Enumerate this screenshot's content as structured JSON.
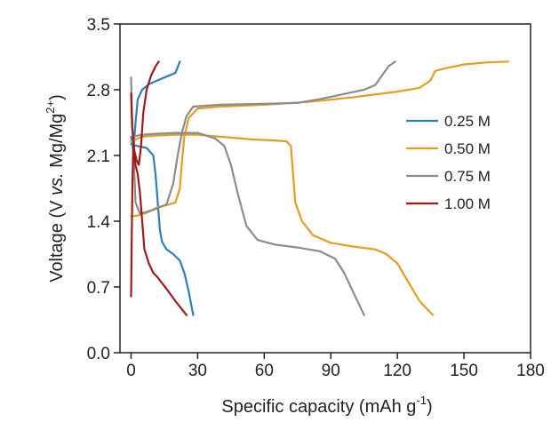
{
  "chart_data": {
    "type": "line",
    "title": "",
    "xlabel": "Specific capacity (mAh g",
    "xlabel_sup": "-1",
    "xlabel_end": ")",
    "ylabel": "Voltage (V ",
    "ylabel_italic": "vs.",
    "ylabel_mid": " Mg/Mg",
    "ylabel_sup": "2+",
    "ylabel_end": ")",
    "xlim": [
      -5,
      180
    ],
    "ylim": [
      0,
      3.5
    ],
    "xticks": [
      0,
      30,
      60,
      90,
      120,
      150,
      180
    ],
    "yticks": [
      0.0,
      0.7,
      1.4,
      2.1,
      2.8,
      3.5
    ],
    "xtick_labels": [
      "0",
      "30",
      "60",
      "90",
      "120",
      "150",
      "180"
    ],
    "ytick_labels": [
      "0.0",
      "0.7",
      "1.4",
      "2.1",
      "2.8",
      "3.5"
    ],
    "legend_position": "center-right",
    "grid": false,
    "series": [
      {
        "name": "0.25 M",
        "color": "#2e7fb8",
        "segments": [
          [
            [
              0,
              2.22
            ],
            [
              3,
              2.2
            ],
            [
              7,
              2.18
            ],
            [
              10,
              2.1
            ],
            [
              11,
              1.9
            ],
            [
              12,
              1.6
            ],
            [
              13,
              1.3
            ],
            [
              14,
              1.18
            ],
            [
              16,
              1.1
            ],
            [
              19,
              1.05
            ],
            [
              22,
              0.98
            ],
            [
              24,
              0.85
            ],
            [
              26,
              0.65
            ],
            [
              28,
              0.4
            ]
          ],
          [
            [
              0,
              2.3
            ],
            [
              1,
              2.15
            ],
            [
              2,
              2.45
            ],
            [
              3,
              2.7
            ],
            [
              5,
              2.8
            ],
            [
              8,
              2.86
            ],
            [
              12,
              2.9
            ],
            [
              16,
              2.94
            ],
            [
              20,
              2.98
            ],
            [
              22,
              3.1
            ]
          ]
        ]
      },
      {
        "name": "0.50 M",
        "color": "#e59c25",
        "segments": [
          [
            [
              0,
              2.25
            ],
            [
              5,
              2.3
            ],
            [
              10,
              2.31
            ],
            [
              20,
              2.32
            ],
            [
              30,
              2.32
            ],
            [
              45,
              2.29
            ],
            [
              55,
              2.27
            ],
            [
              65,
              2.26
            ],
            [
              70,
              2.25
            ],
            [
              72,
              2.2
            ],
            [
              73,
              1.9
            ],
            [
              74,
              1.6
            ],
            [
              77,
              1.4
            ],
            [
              82,
              1.25
            ],
            [
              90,
              1.17
            ],
            [
              100,
              1.13
            ],
            [
              110,
              1.1
            ],
            [
              115,
              1.05
            ],
            [
              120,
              0.95
            ],
            [
              125,
              0.75
            ],
            [
              130,
              0.55
            ],
            [
              136,
              0.4
            ]
          ],
          [
            [
              0,
              1.45
            ],
            [
              3,
              1.46
            ],
            [
              8,
              1.5
            ],
            [
              12,
              1.55
            ],
            [
              16,
              1.57
            ],
            [
              20,
              1.6
            ],
            [
              22,
              1.75
            ],
            [
              23,
              2.05
            ],
            [
              24,
              2.3
            ],
            [
              26,
              2.5
            ],
            [
              30,
              2.6
            ],
            [
              40,
              2.62
            ],
            [
              60,
              2.64
            ],
            [
              80,
              2.67
            ],
            [
              100,
              2.72
            ],
            [
              120,
              2.78
            ],
            [
              130,
              2.82
            ],
            [
              135,
              2.9
            ],
            [
              137,
              3.0
            ],
            [
              142,
              3.03
            ],
            [
              150,
              3.07
            ],
            [
              160,
              3.09
            ],
            [
              170,
              3.1
            ]
          ]
        ]
      },
      {
        "name": "0.75 M",
        "color": "#8c8c8c",
        "segments": [
          [
            [
              0,
              2.3
            ],
            [
              5,
              2.32
            ],
            [
              10,
              2.33
            ],
            [
              20,
              2.34
            ],
            [
              30,
              2.34
            ],
            [
              38,
              2.28
            ],
            [
              42,
              2.2
            ],
            [
              45,
              2.0
            ],
            [
              48,
              1.7
            ],
            [
              52,
              1.35
            ],
            [
              57,
              1.2
            ],
            [
              65,
              1.15
            ],
            [
              75,
              1.12
            ],
            [
              85,
              1.08
            ],
            [
              92,
              1.0
            ],
            [
              96,
              0.85
            ],
            [
              100,
              0.65
            ],
            [
              105,
              0.4
            ]
          ],
          [
            [
              0,
              2.93
            ],
            [
              0.5,
              2.5
            ],
            [
              1,
              2.2
            ],
            [
              2,
              1.6
            ],
            [
              4,
              1.48
            ],
            [
              10,
              1.52
            ],
            [
              16,
              1.58
            ],
            [
              19,
              1.8
            ],
            [
              21,
              2.1
            ],
            [
              23,
              2.35
            ],
            [
              25,
              2.52
            ],
            [
              28,
              2.62
            ],
            [
              40,
              2.64
            ],
            [
              60,
              2.65
            ],
            [
              75,
              2.66
            ],
            [
              85,
              2.7
            ],
            [
              95,
              2.75
            ],
            [
              105,
              2.8
            ],
            [
              110,
              2.85
            ],
            [
              113,
              2.95
            ],
            [
              116,
              3.05
            ],
            [
              119,
              3.1
            ]
          ]
        ]
      },
      {
        "name": "1.00 M",
        "color": "#9b1c1c",
        "segments": [
          [
            [
              0,
              0.6
            ],
            [
              0.3,
              1.2
            ],
            [
              0.6,
              1.8
            ],
            [
              1,
              2.2
            ],
            [
              1.5,
              2.1
            ],
            [
              2,
              2.0
            ],
            [
              3,
              1.9
            ],
            [
              4,
              1.7
            ],
            [
              5,
              1.4
            ],
            [
              6,
              1.1
            ],
            [
              8,
              0.95
            ],
            [
              10,
              0.85
            ],
            [
              12,
              0.8
            ],
            [
              16,
              0.68
            ],
            [
              20,
              0.55
            ],
            [
              25,
              0.4
            ]
          ],
          [
            [
              0,
              2.76
            ],
            [
              0.5,
              2.4
            ],
            [
              1.5,
              2.15
            ],
            [
              2.5,
              2.05
            ],
            [
              3.5,
              2.0
            ],
            [
              4.5,
              2.2
            ],
            [
              5.5,
              2.55
            ],
            [
              7,
              2.8
            ],
            [
              9,
              2.95
            ],
            [
              11,
              3.05
            ],
            [
              12.5,
              3.1
            ]
          ]
        ]
      }
    ]
  }
}
